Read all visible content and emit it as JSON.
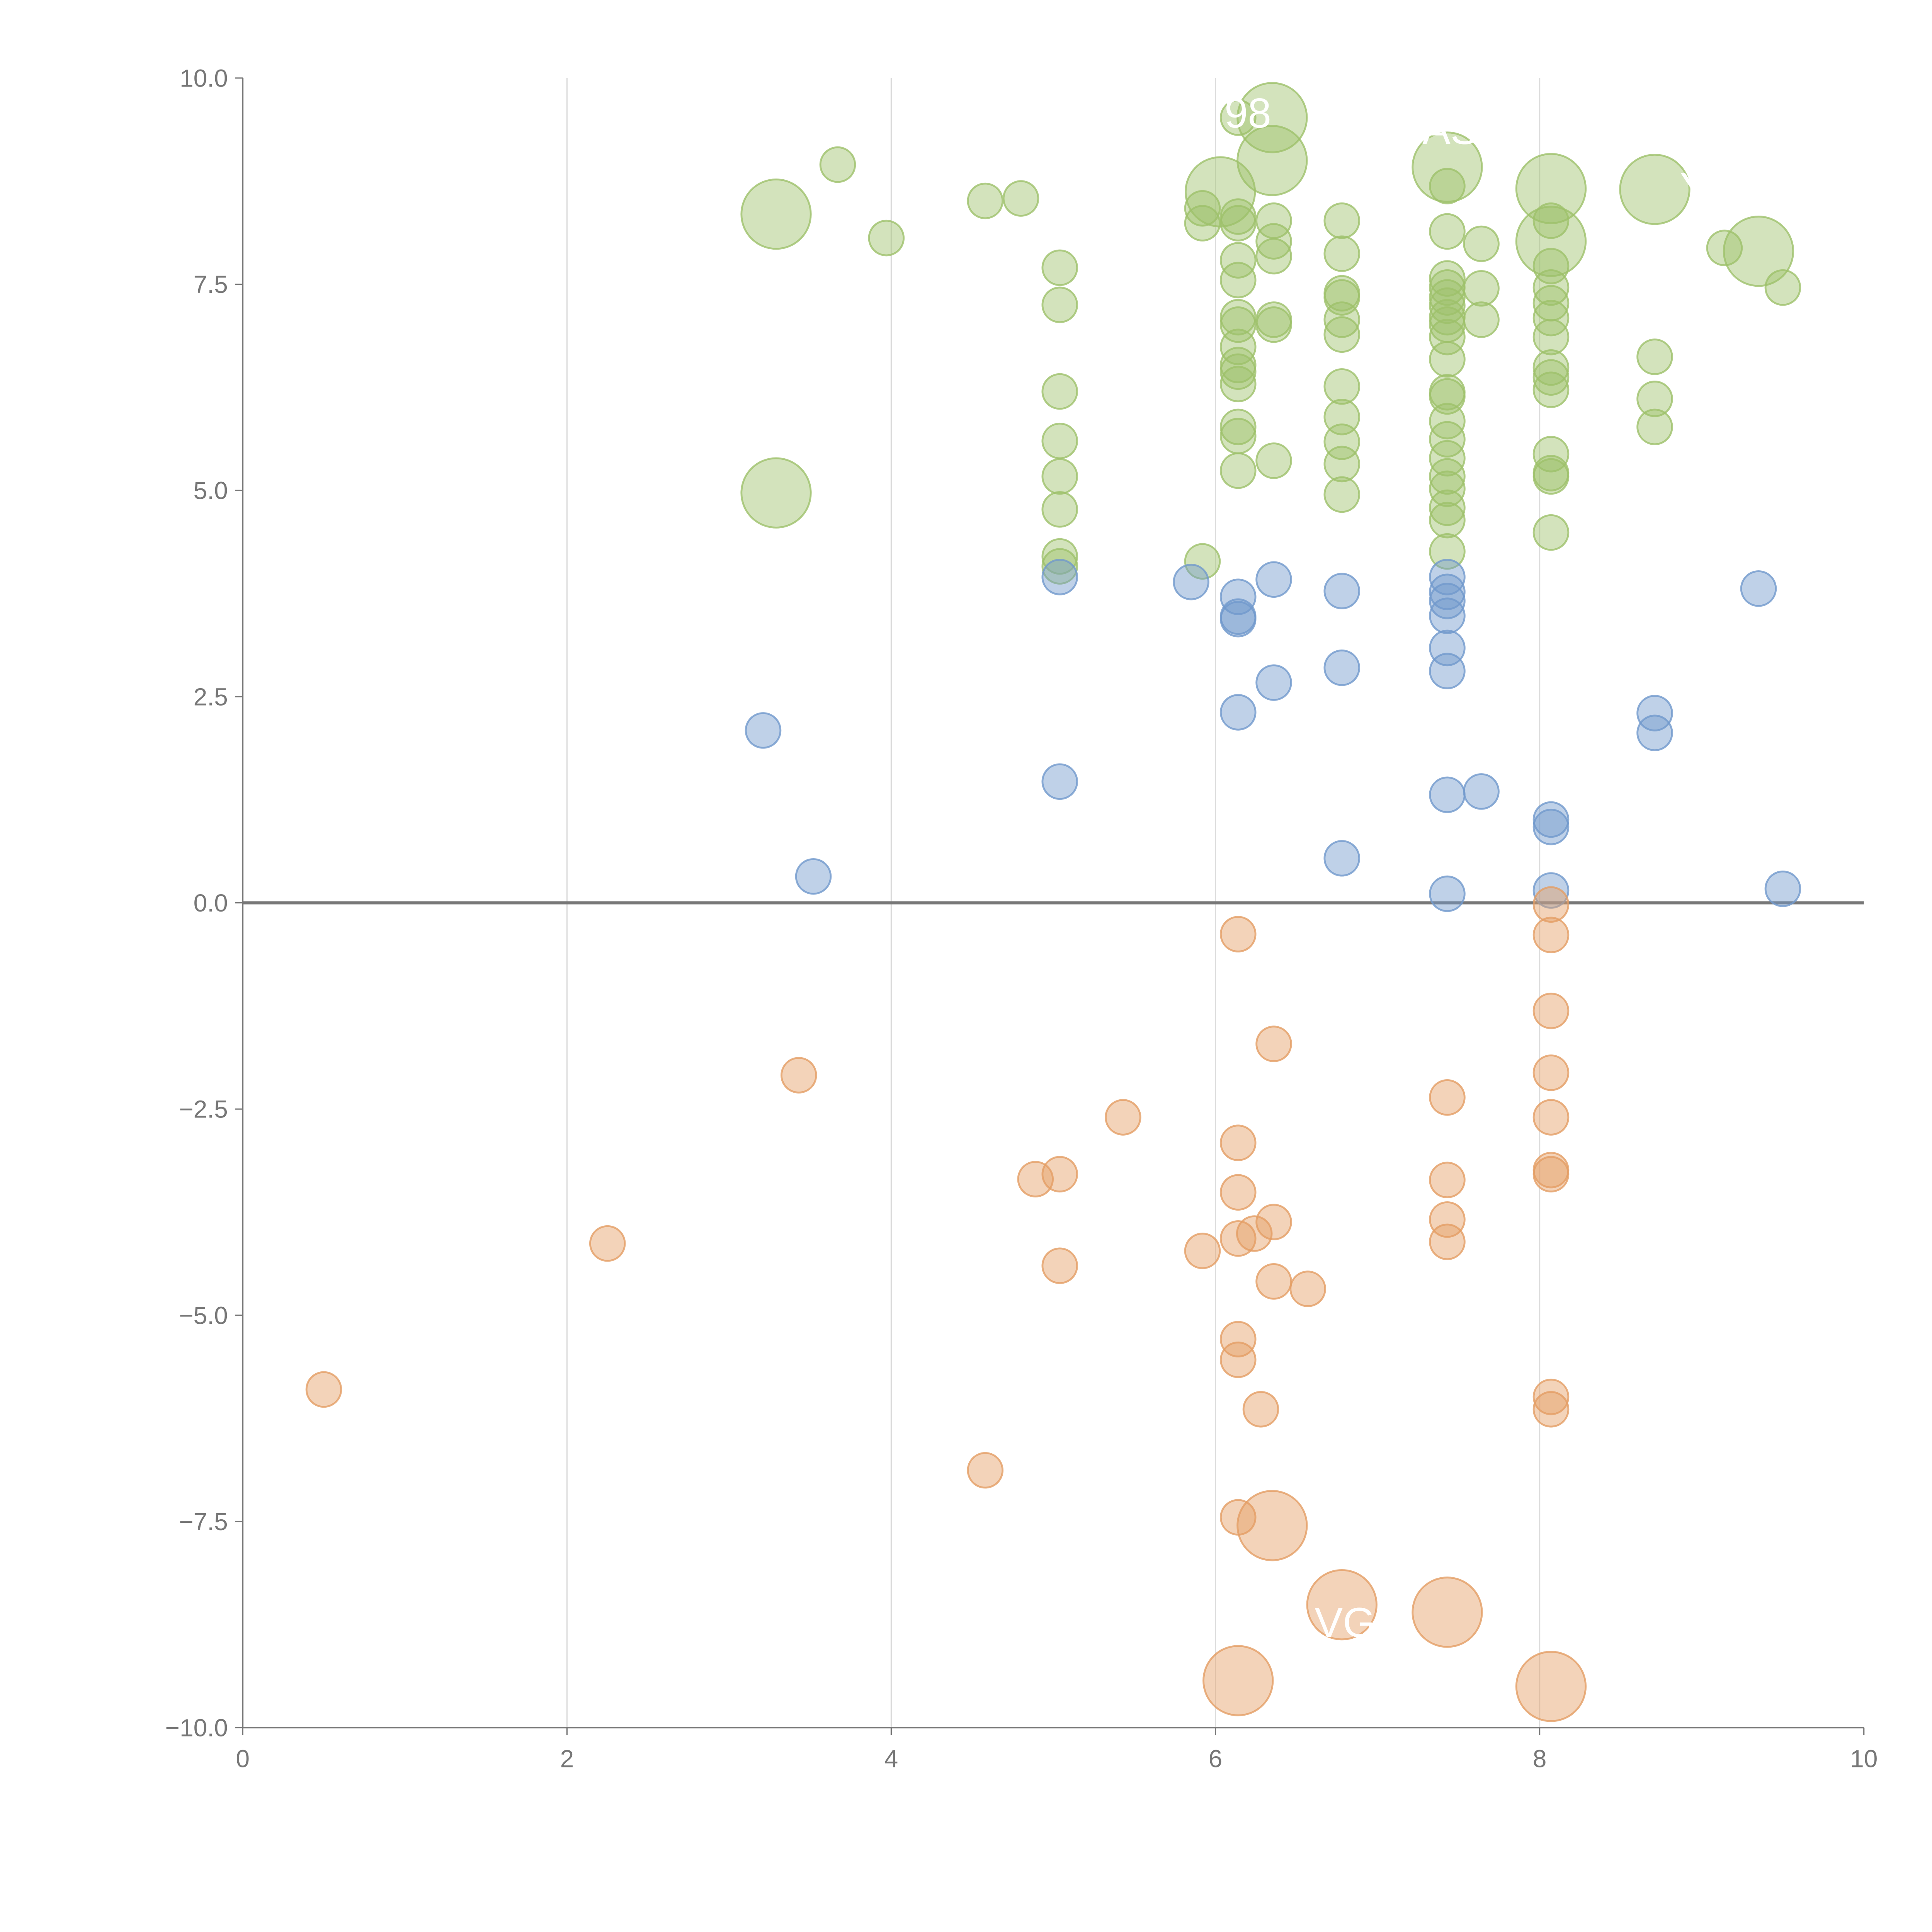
{
  "chart_data": {
    "type": "scatter",
    "title": "",
    "xlabel": "",
    "ylabel": "",
    "xlim": [
      0,
      10
    ],
    "ylim": [
      -10,
      10
    ],
    "grid": "vertical",
    "x_ticks": [
      "0",
      "2",
      "4",
      "6",
      "8",
      "10"
    ],
    "x_tick_values": [
      0,
      2,
      4,
      6,
      8,
      10
    ],
    "y_ticks": [
      "10.0",
      "7.5",
      "5.0",
      "2.5",
      "0.0",
      "−2.5",
      "−5.0",
      "−7.5",
      "−10.0"
    ],
    "y_tick_values": [
      10,
      7.5,
      5,
      2.5,
      0,
      -2.5,
      -5,
      -7.5,
      -10
    ],
    "zero_line": 0,
    "size_note": "third value of each point = relative bubble size",
    "series": [
      {
        "name": "positive-high",
        "color": "#9dc16a",
        "points": [
          [
            3.29,
            8.35,
            4
          ],
          [
            3.29,
            4.97,
            4
          ],
          [
            3.67,
            8.95,
            1
          ],
          [
            3.97,
            8.06,
            1
          ],
          [
            4.58,
            8.51,
            1
          ],
          [
            4.8,
            8.54,
            1
          ],
          [
            5.04,
            7.7,
            1
          ],
          [
            5.04,
            7.25,
            1
          ],
          [
            5.04,
            6.2,
            1
          ],
          [
            5.04,
            5.6,
            1
          ],
          [
            5.04,
            5.17,
            1
          ],
          [
            5.04,
            4.77,
            1
          ],
          [
            5.04,
            4.2,
            1
          ],
          [
            5.04,
            4.08,
            1
          ],
          [
            5.92,
            4.14,
            1
          ],
          [
            5.92,
            8.24,
            1
          ],
          [
            5.92,
            8.42,
            1
          ],
          [
            6.03,
            8.62,
            4
          ],
          [
            6.14,
            9.52,
            1
          ],
          [
            6.14,
            8.32,
            1
          ],
          [
            6.14,
            8.24,
            1
          ],
          [
            6.14,
            7.79,
            1
          ],
          [
            6.14,
            7.55,
            1
          ],
          [
            6.14,
            7.1,
            1
          ],
          [
            6.14,
            7.01,
            1
          ],
          [
            6.14,
            6.74,
            1
          ],
          [
            6.14,
            6.52,
            1
          ],
          [
            6.14,
            6.44,
            1
          ],
          [
            6.14,
            6.29,
            1
          ],
          [
            6.14,
            5.77,
            1
          ],
          [
            6.14,
            5.66,
            1
          ],
          [
            6.14,
            5.24,
            1
          ],
          [
            6.35,
            9.52,
            4
          ],
          [
            6.35,
            9.0,
            4
          ],
          [
            6.36,
            8.27,
            1
          ],
          [
            6.36,
            8.02,
            1
          ],
          [
            6.36,
            7.84,
            1
          ],
          [
            6.36,
            7.07,
            1
          ],
          [
            6.36,
            7.01,
            1
          ],
          [
            6.36,
            5.36,
            1
          ],
          [
            6.78,
            8.27,
            1
          ],
          [
            6.78,
            7.87,
            1
          ],
          [
            6.78,
            7.39,
            1
          ],
          [
            6.78,
            7.34,
            1
          ],
          [
            6.78,
            7.07,
            1
          ],
          [
            6.78,
            6.89,
            1
          ],
          [
            6.78,
            6.26,
            1
          ],
          [
            6.78,
            5.89,
            1
          ],
          [
            6.78,
            5.59,
            1
          ],
          [
            6.78,
            5.32,
            1
          ],
          [
            6.78,
            4.95,
            1
          ],
          [
            7.43,
            8.92,
            4
          ],
          [
            7.43,
            8.69,
            1
          ],
          [
            7.43,
            8.14,
            1
          ],
          [
            7.43,
            7.57,
            1
          ],
          [
            7.43,
            7.46,
            1
          ],
          [
            7.43,
            7.34,
            1
          ],
          [
            7.43,
            7.24,
            1
          ],
          [
            7.43,
            7.1,
            1
          ],
          [
            7.43,
            7.01,
            1
          ],
          [
            7.43,
            6.86,
            1
          ],
          [
            7.43,
            6.59,
            1
          ],
          [
            7.43,
            6.19,
            1
          ],
          [
            7.43,
            6.14,
            1
          ],
          [
            7.43,
            5.84,
            1
          ],
          [
            7.43,
            5.62,
            1
          ],
          [
            7.43,
            5.39,
            1
          ],
          [
            7.43,
            5.17,
            1
          ],
          [
            7.43,
            5.02,
            1
          ],
          [
            7.43,
            4.79,
            1
          ],
          [
            7.43,
            4.64,
            1
          ],
          [
            7.43,
            4.26,
            1
          ],
          [
            7.64,
            7.99,
            1
          ],
          [
            7.64,
            7.45,
            1
          ],
          [
            7.64,
            7.07,
            1
          ],
          [
            8.07,
            8.66,
            4
          ],
          [
            8.07,
            8.02,
            4
          ],
          [
            8.07,
            8.27,
            1
          ],
          [
            8.07,
            7.72,
            1
          ],
          [
            8.07,
            7.46,
            1
          ],
          [
            8.07,
            7.27,
            1
          ],
          [
            8.07,
            7.09,
            1
          ],
          [
            8.07,
            6.86,
            1
          ],
          [
            8.07,
            6.49,
            1
          ],
          [
            8.07,
            6.37,
            1
          ],
          [
            8.07,
            6.22,
            1
          ],
          [
            8.07,
            5.44,
            1
          ],
          [
            8.07,
            5.21,
            1
          ],
          [
            8.07,
            5.17,
            1
          ],
          [
            8.07,
            4.49,
            1
          ],
          [
            8.71,
            8.65,
            4
          ],
          [
            8.71,
            6.62,
            1
          ],
          [
            8.71,
            6.11,
            1
          ],
          [
            8.71,
            5.77,
            1
          ],
          [
            9.14,
            7.94,
            1
          ],
          [
            9.35,
            7.9,
            4
          ],
          [
            9.5,
            7.46,
            1
          ]
        ]
      },
      {
        "name": "positive-low",
        "color": "#7098cc",
        "points": [
          [
            3.21,
            2.09,
            1
          ],
          [
            3.52,
            0.32,
            1
          ],
          [
            5.04,
            3.95,
            1
          ],
          [
            5.04,
            1.47,
            1
          ],
          [
            5.85,
            3.89,
            1
          ],
          [
            6.14,
            3.71,
            1
          ],
          [
            6.14,
            3.47,
            1
          ],
          [
            6.14,
            3.44,
            1
          ],
          [
            6.14,
            2.31,
            1
          ],
          [
            6.36,
            3.92,
            1
          ],
          [
            6.36,
            2.67,
            1
          ],
          [
            6.78,
            3.78,
            1
          ],
          [
            6.78,
            2.85,
            1
          ],
          [
            6.78,
            0.54,
            1
          ],
          [
            7.43,
            3.95,
            1
          ],
          [
            7.43,
            3.77,
            1
          ],
          [
            7.43,
            3.66,
            1
          ],
          [
            7.43,
            3.48,
            1
          ],
          [
            7.43,
            3.09,
            1
          ],
          [
            7.43,
            2.81,
            1
          ],
          [
            7.43,
            1.31,
            1
          ],
          [
            7.43,
            0.11,
            1
          ],
          [
            7.64,
            1.35,
            1
          ],
          [
            8.07,
            1.01,
            1
          ],
          [
            8.07,
            0.92,
            1
          ],
          [
            8.07,
            0.15,
            1
          ],
          [
            8.71,
            2.3,
            1
          ],
          [
            8.71,
            2.06,
            1
          ],
          [
            9.35,
            3.81,
            1
          ],
          [
            9.5,
            0.17,
            1
          ]
        ]
      },
      {
        "name": "negative",
        "color": "#e49e64",
        "points": [
          [
            0.5,
            -5.9,
            1
          ],
          [
            2.25,
            -4.13,
            1
          ],
          [
            3.43,
            -2.09,
            1
          ],
          [
            4.58,
            -6.88,
            1
          ],
          [
            4.89,
            -3.35,
            1
          ],
          [
            5.04,
            -3.29,
            1
          ],
          [
            5.04,
            -4.4,
            1
          ],
          [
            5.43,
            -2.6,
            1
          ],
          [
            5.92,
            -4.22,
            1
          ],
          [
            6.14,
            -0.38,
            1
          ],
          [
            6.14,
            -2.91,
            1
          ],
          [
            6.14,
            -3.51,
            1
          ],
          [
            6.14,
            -4.07,
            1
          ],
          [
            6.14,
            -5.29,
            1
          ],
          [
            6.14,
            -5.54,
            1
          ],
          [
            6.14,
            -7.45,
            1
          ],
          [
            6.14,
            -9.43,
            4
          ],
          [
            6.24,
            -4.01,
            1
          ],
          [
            6.28,
            -6.14,
            1
          ],
          [
            6.36,
            -1.71,
            1
          ],
          [
            6.36,
            -3.87,
            1
          ],
          [
            6.36,
            -4.59,
            1
          ],
          [
            6.35,
            -7.55,
            4
          ],
          [
            6.57,
            -4.68,
            1
          ],
          [
            6.78,
            -8.51,
            4
          ],
          [
            7.43,
            -2.36,
            1
          ],
          [
            7.43,
            -3.36,
            1
          ],
          [
            7.43,
            -3.84,
            1
          ],
          [
            7.43,
            -4.11,
            1
          ],
          [
            7.43,
            -8.6,
            4
          ],
          [
            8.07,
            -0.02,
            1
          ],
          [
            8.07,
            -0.39,
            1
          ],
          [
            8.07,
            -1.31,
            1
          ],
          [
            8.07,
            -2.06,
            1
          ],
          [
            8.07,
            -2.6,
            1
          ],
          [
            8.07,
            -3.24,
            1
          ],
          [
            8.07,
            -3.29,
            1
          ],
          [
            8.07,
            -5.99,
            1
          ],
          [
            8.07,
            -6.14,
            1
          ],
          [
            8.07,
            -9.5,
            4
          ]
        ]
      }
    ],
    "annotations": [
      {
        "text": "98",
        "x": 6.2,
        "y": 9.4
      },
      {
        "text": "AS",
        "x": 7.45,
        "y": 9.2
      },
      {
        "text": "Y",
        "x": 8.95,
        "y": 8.5
      },
      {
        "text": "VG",
        "x": 6.8,
        "y": -8.9
      }
    ]
  }
}
